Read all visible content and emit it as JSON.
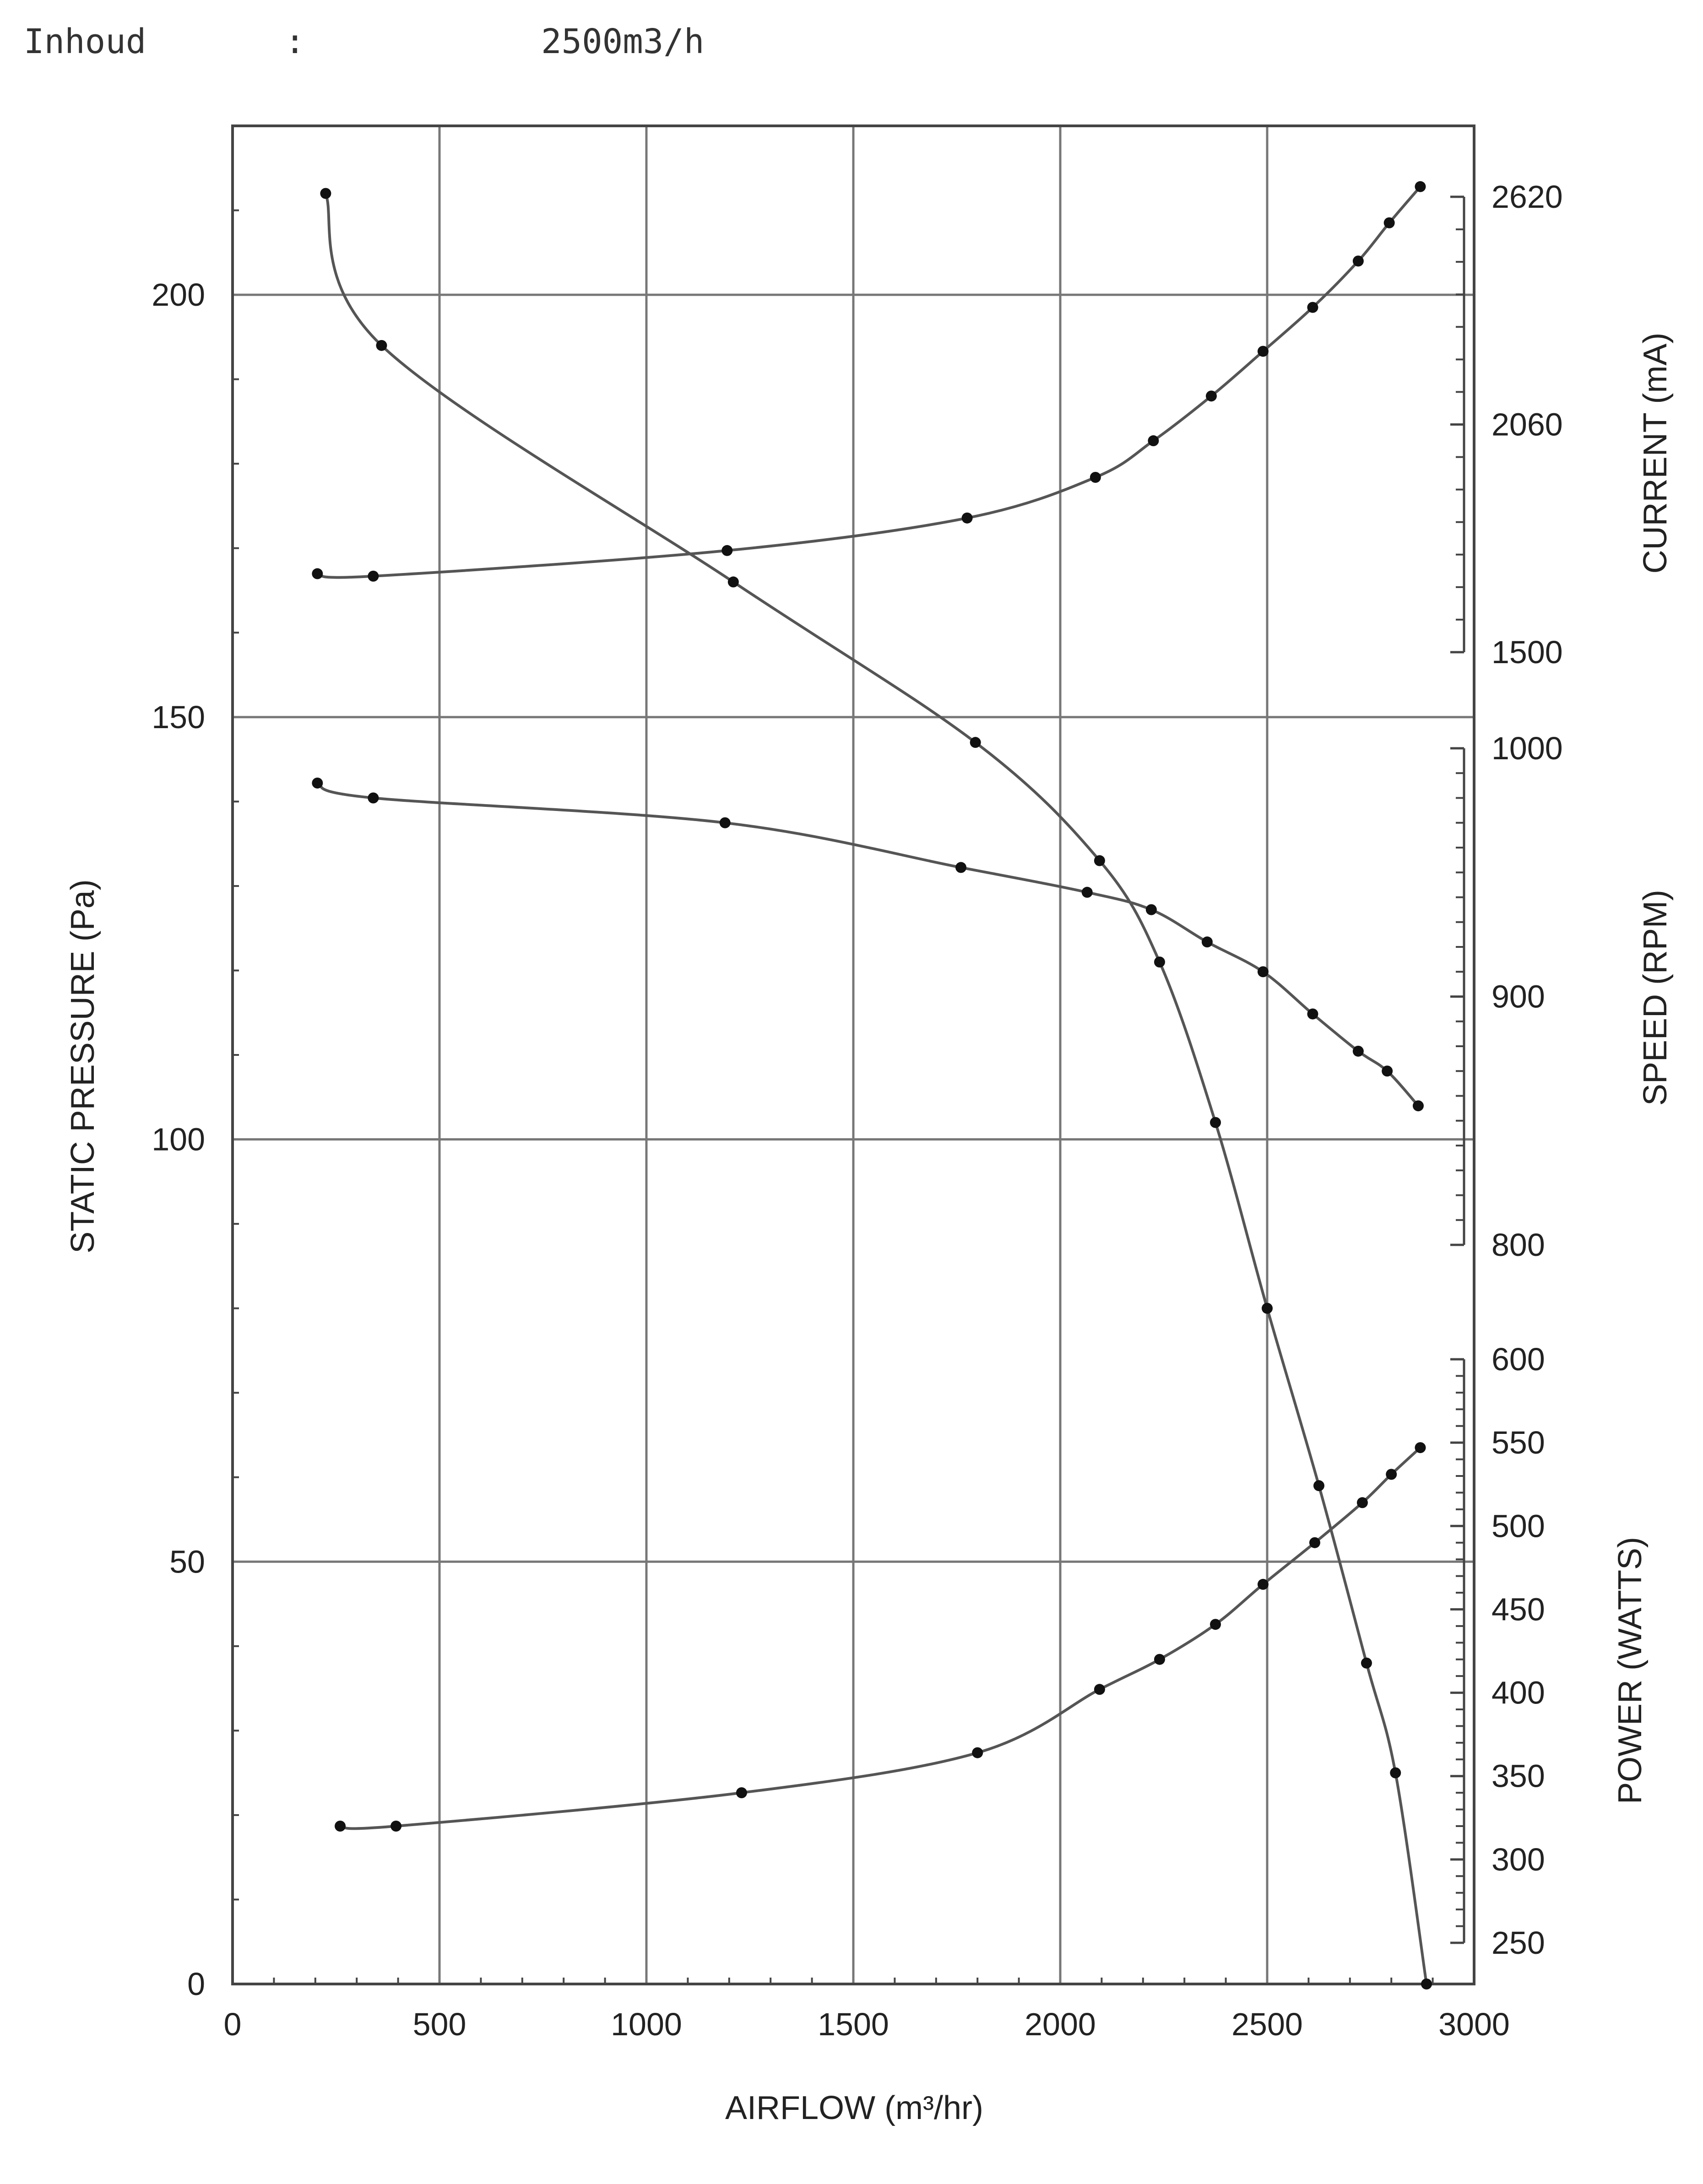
{
  "header": {
    "label": "Inhoud",
    "separator": ":",
    "value": "2500m3/h"
  },
  "chart_data": {
    "type": "line",
    "xlabel": "AIRFLOW (m³/hr)",
    "xlim": [
      0,
      3000
    ],
    "x_ticks": [
      "0",
      "500",
      "1000",
      "1500",
      "2000",
      "2500",
      "3000"
    ],
    "grid": true,
    "colors": {
      "line": "#555555",
      "marker": "#111111",
      "grid": "#777777",
      "frame": "#444444"
    },
    "axes": {
      "pressure": {
        "label": "STATIC PRESSURE (Pa)",
        "side": "left",
        "range": [
          0,
          220
        ],
        "ticks": [
          "0",
          "50",
          "100",
          "150",
          "200"
        ]
      },
      "current": {
        "label": "CURRENT (mA)",
        "side": "right",
        "range": [
          1500,
          2620
        ],
        "ticks": [
          "1500",
          "2060",
          "2620"
        ]
      },
      "speed": {
        "label": "SPEED (RPM)",
        "side": "right",
        "range": [
          800,
          1000
        ],
        "ticks": [
          "800",
          "900",
          "1000"
        ]
      },
      "power": {
        "label": "POWER (WATTS)",
        "side": "right",
        "range": [
          250,
          600
        ],
        "ticks": [
          "250",
          "300",
          "350",
          "400",
          "450",
          "500",
          "550",
          "600"
        ]
      }
    },
    "series": [
      {
        "axis": "pressure",
        "x": [
          225,
          360,
          1210,
          1795,
          2095,
          2240,
          2375,
          2500,
          2625,
          2740,
          2810,
          2885
        ],
        "y": [
          212,
          194,
          166,
          147,
          133,
          121,
          102,
          80,
          59,
          38,
          25,
          0
        ]
      },
      {
        "axis": "current",
        "x": [
          205,
          340,
          1195,
          1775,
          2085,
          2225,
          2365,
          2490,
          2610,
          2720,
          2795,
          2870
        ],
        "y": [
          1693,
          1687,
          1750,
          1830,
          1930,
          2020,
          2130,
          2240,
          2348,
          2462,
          2556,
          2645
        ]
      },
      {
        "axis": "speed",
        "x": [
          205,
          340,
          1190,
          1760,
          2065,
          2220,
          2355,
          2490,
          2610,
          2720,
          2790,
          2865
        ],
        "y": [
          986,
          980,
          970,
          952,
          942,
          935,
          922,
          910,
          893,
          878,
          870,
          856
        ]
      },
      {
        "axis": "power",
        "x": [
          260,
          395,
          1230,
          1800,
          2095,
          2240,
          2375,
          2490,
          2615,
          2730,
          2800,
          2870
        ],
        "y": [
          320,
          320,
          340,
          364,
          402,
          420,
          441,
          465,
          490,
          514,
          531,
          547
        ]
      }
    ]
  }
}
